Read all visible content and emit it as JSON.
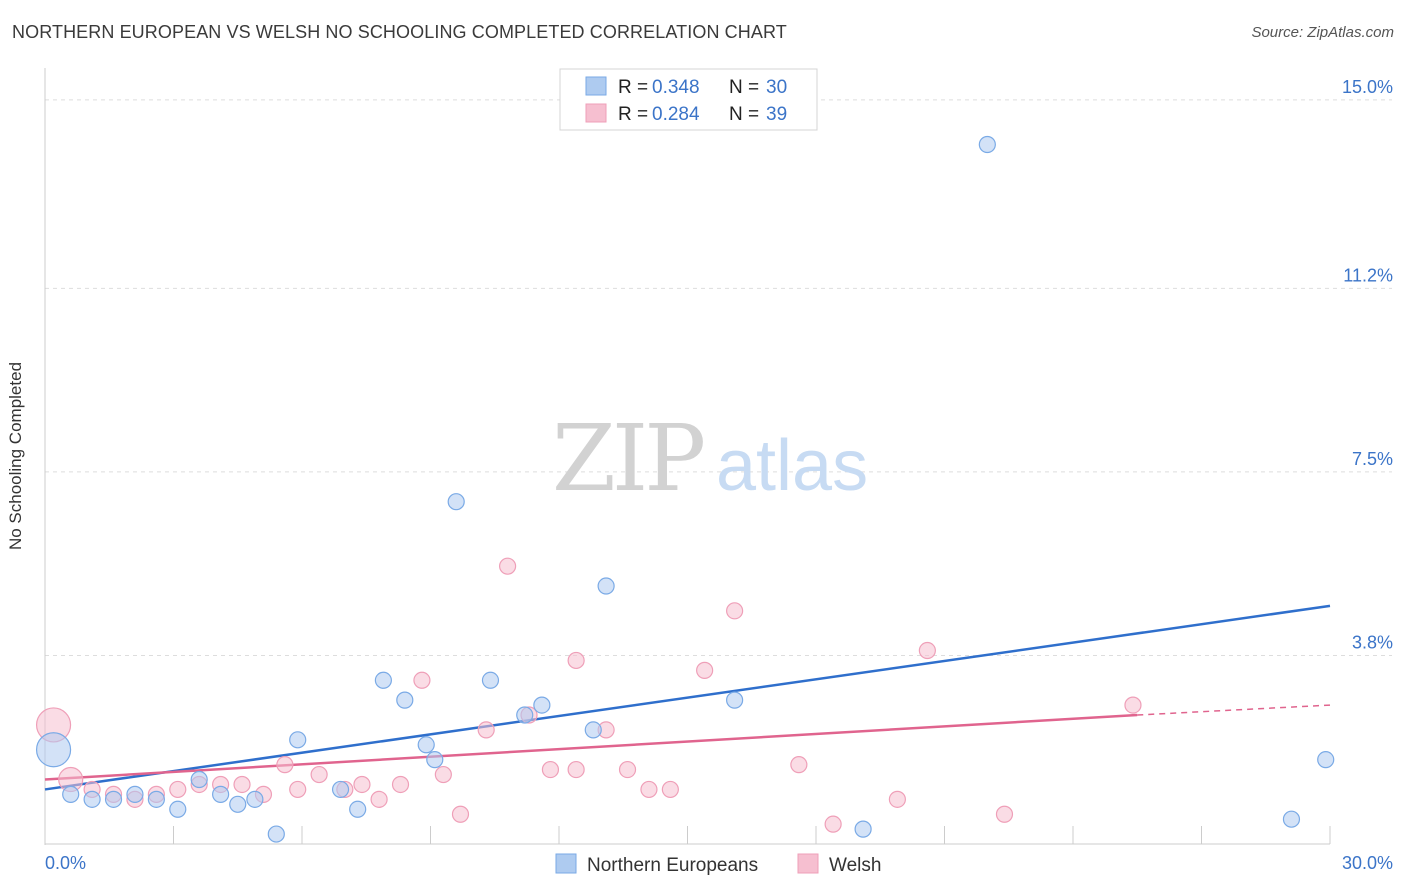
{
  "header": {
    "title": "NORTHERN EUROPEAN VS WELSH NO SCHOOLING COMPLETED CORRELATION CHART",
    "source": "Source: ZipAtlas.com"
  },
  "watermark": {
    "zip": "ZIP",
    "atlas": "atlas"
  },
  "colors": {
    "blue_fill": "#aecbf0",
    "blue_stroke": "#7aaae6",
    "blue_line": "#2f6fcc",
    "pink_fill": "#f6bfd0",
    "pink_stroke": "#ef9fb8",
    "pink_line": "#e0648e",
    "value_text": "#3b74c8",
    "grid": "#dddddd"
  },
  "legend": {
    "rows": [
      {
        "r_label": "R =",
        "r_value": "0.348",
        "n_label": "N =",
        "n_value": "30"
      },
      {
        "r_label": "R =",
        "r_value": "0.284",
        "n_label": "N =",
        "n_value": "39"
      }
    ]
  },
  "chart_data": {
    "type": "scatter",
    "title": "NORTHERN EUROPEAN VS WELSH NO SCHOOLING COMPLETED CORRELATION CHART",
    "xlabel": "",
    "ylabel": "No Schooling Completed",
    "xlim": [
      0,
      30
    ],
    "ylim": [
      0,
      15.4
    ],
    "x_tick_labels": [
      {
        "value": 0,
        "label": "0.0%"
      },
      {
        "value": 30,
        "label": "30.0%"
      }
    ],
    "y_ticks": [
      {
        "value": 3.8,
        "label": "3.8%"
      },
      {
        "value": 7.5,
        "label": "7.5%"
      },
      {
        "value": 11.2,
        "label": "11.2%"
      },
      {
        "value": 15.0,
        "label": "15.0%"
      }
    ],
    "series": [
      {
        "name": "Northern Europeans",
        "r": 0.348,
        "n": 30,
        "trend": {
          "x0": 0,
          "y0": 1.1,
          "x1": 30,
          "y1": 4.8
        },
        "points": [
          {
            "x": 0.2,
            "y": 1.9,
            "size": "large"
          },
          {
            "x": 0.6,
            "y": 1.0
          },
          {
            "x": 1.1,
            "y": 0.9
          },
          {
            "x": 1.6,
            "y": 0.9
          },
          {
            "x": 2.1,
            "y": 1.0
          },
          {
            "x": 2.6,
            "y": 0.9
          },
          {
            "x": 3.1,
            "y": 0.7
          },
          {
            "x": 3.6,
            "y": 1.3
          },
          {
            "x": 4.1,
            "y": 1.0
          },
          {
            "x": 4.5,
            "y": 0.8
          },
          {
            "x": 4.9,
            "y": 0.9
          },
          {
            "x": 5.4,
            "y": 0.2
          },
          {
            "x": 5.9,
            "y": 2.1
          },
          {
            "x": 6.9,
            "y": 1.1
          },
          {
            "x": 7.3,
            "y": 0.7
          },
          {
            "x": 7.9,
            "y": 3.3
          },
          {
            "x": 8.4,
            "y": 2.9
          },
          {
            "x": 8.9,
            "y": 2.0
          },
          {
            "x": 9.1,
            "y": 1.7
          },
          {
            "x": 9.6,
            "y": 6.9
          },
          {
            "x": 10.4,
            "y": 3.3
          },
          {
            "x": 11.2,
            "y": 2.6
          },
          {
            "x": 11.6,
            "y": 2.8
          },
          {
            "x": 12.8,
            "y": 2.3
          },
          {
            "x": 13.1,
            "y": 5.2
          },
          {
            "x": 16.1,
            "y": 2.9
          },
          {
            "x": 19.1,
            "y": 0.3
          },
          {
            "x": 22.0,
            "y": 14.1
          },
          {
            "x": 29.1,
            "y": 0.5
          },
          {
            "x": 29.9,
            "y": 1.7
          }
        ]
      },
      {
        "name": "Welsh",
        "r": 0.284,
        "n": 39,
        "trend": {
          "x0": 0,
          "y0": 1.3,
          "x1": 25.5,
          "y1": 2.6
        },
        "trend_dashed": {
          "x0": 25.5,
          "y0": 2.6,
          "x1": 30,
          "y1": 2.8
        },
        "points": [
          {
            "x": 0.2,
            "y": 2.4,
            "size": "large"
          },
          {
            "x": 0.6,
            "y": 1.3,
            "size": "medium"
          },
          {
            "x": 1.1,
            "y": 1.1
          },
          {
            "x": 1.6,
            "y": 1.0
          },
          {
            "x": 2.1,
            "y": 0.9
          },
          {
            "x": 2.6,
            "y": 1.0
          },
          {
            "x": 3.1,
            "y": 1.1
          },
          {
            "x": 3.6,
            "y": 1.2
          },
          {
            "x": 4.1,
            "y": 1.2
          },
          {
            "x": 4.6,
            "y": 1.2
          },
          {
            "x": 5.1,
            "y": 1.0
          },
          {
            "x": 5.6,
            "y": 1.6
          },
          {
            "x": 5.9,
            "y": 1.1
          },
          {
            "x": 6.4,
            "y": 1.4
          },
          {
            "x": 7.0,
            "y": 1.1
          },
          {
            "x": 7.4,
            "y": 1.2
          },
          {
            "x": 7.8,
            "y": 0.9
          },
          {
            "x": 8.3,
            "y": 1.2
          },
          {
            "x": 8.8,
            "y": 3.3
          },
          {
            "x": 9.3,
            "y": 1.4
          },
          {
            "x": 9.7,
            "y": 0.6
          },
          {
            "x": 10.3,
            "y": 2.3
          },
          {
            "x": 10.8,
            "y": 5.6
          },
          {
            "x": 11.3,
            "y": 2.6
          },
          {
            "x": 11.8,
            "y": 1.5
          },
          {
            "x": 12.4,
            "y": 3.7
          },
          {
            "x": 12.4,
            "y": 1.5
          },
          {
            "x": 13.1,
            "y": 2.3
          },
          {
            "x": 13.6,
            "y": 1.5
          },
          {
            "x": 14.1,
            "y": 1.1
          },
          {
            "x": 14.6,
            "y": 1.1
          },
          {
            "x": 15.4,
            "y": 3.5
          },
          {
            "x": 16.1,
            "y": 4.7
          },
          {
            "x": 17.6,
            "y": 1.6
          },
          {
            "x": 18.4,
            "y": 0.4
          },
          {
            "x": 19.9,
            "y": 0.9
          },
          {
            "x": 20.6,
            "y": 3.9
          },
          {
            "x": 22.4,
            "y": 0.6
          },
          {
            "x": 25.4,
            "y": 2.8
          }
        ]
      }
    ],
    "legend_placement": "top-center",
    "bottom_legend": [
      "Northern Europeans",
      "Welsh"
    ]
  }
}
